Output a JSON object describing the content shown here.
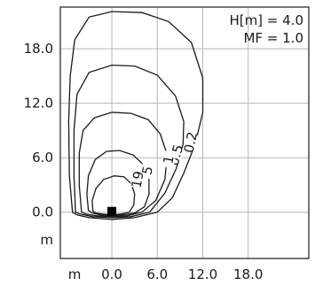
{
  "chart_data": {
    "type": "isoline",
    "annotations": [
      "H[m] = 4.0",
      "MF = 1.0"
    ],
    "x_ticks": [
      "m",
      "0.0",
      "6.0",
      "12.0",
      "18.0"
    ],
    "x_tick_values": [
      null,
      0,
      6,
      12,
      18
    ],
    "y_ticks": [
      "m",
      "0.0",
      "6.0",
      "12.0",
      "18.0"
    ],
    "y_tick_values": [
      null,
      0,
      6,
      12,
      18
    ],
    "xlim": [
      -6.8,
      26.0
    ],
    "ylim": [
      -5.1,
      22.6
    ],
    "grid": true,
    "luminaire": {
      "x": 0,
      "y": 0
    },
    "contours": [
      {
        "label": "0.2",
        "label_at": [
          10.4,
          7.7
        ],
        "label_rotation": -78,
        "points": [
          [
            -5.2,
            0.0
          ],
          [
            -5.6,
            4.0
          ],
          [
            -5.7,
            10.0
          ],
          [
            -5.5,
            15.0
          ],
          [
            -4.9,
            19.0
          ],
          [
            -3.0,
            21.5
          ],
          [
            0.0,
            22.1
          ],
          [
            4.0,
            22.0
          ],
          [
            7.5,
            21.0
          ],
          [
            10.5,
            18.7
          ],
          [
            12.0,
            14.8
          ],
          [
            12.0,
            11.0
          ],
          [
            11.0,
            7.5
          ],
          [
            9.5,
            4.3
          ],
          [
            8.0,
            1.6
          ],
          [
            6.0,
            0.0
          ],
          [
            3.0,
            -0.6
          ],
          [
            0.0,
            -0.8
          ],
          [
            -3.0,
            -0.6
          ],
          [
            -4.6,
            -0.3
          ],
          [
            -5.2,
            0.0
          ]
        ]
      },
      {
        "label": "0.5",
        "label_at": [
          8.5,
          6.3
        ],
        "label_rotation": -75,
        "points": [
          [
            -4.8,
            0.0
          ],
          [
            -5.0,
            4.0
          ],
          [
            -5.0,
            9.0
          ],
          [
            -4.6,
            13.0
          ],
          [
            -3.0,
            15.4
          ],
          [
            0.0,
            16.2
          ],
          [
            3.0,
            16.1
          ],
          [
            6.0,
            15.1
          ],
          [
            8.4,
            12.8
          ],
          [
            9.5,
            10.0
          ],
          [
            9.4,
            7.5
          ],
          [
            8.5,
            4.8
          ],
          [
            7.0,
            2.1
          ],
          [
            5.0,
            0.0
          ],
          [
            2.5,
            -0.5
          ],
          [
            0.0,
            -0.6
          ],
          [
            -2.5,
            -0.5
          ],
          [
            -4.2,
            -0.2
          ],
          [
            -4.8,
            0.0
          ]
        ]
      },
      {
        "label": "1",
        "label_at": [
          7.5,
          5.8
        ],
        "label_rotation": -80,
        "points": [
          [
            -4.0,
            0.0
          ],
          [
            -4.3,
            3.0
          ],
          [
            -4.3,
            6.5
          ],
          [
            -3.8,
            9.0
          ],
          [
            -2.3,
            10.4
          ],
          [
            0.0,
            11.0
          ],
          [
            2.5,
            10.9
          ],
          [
            4.8,
            10.2
          ],
          [
            6.4,
            8.6
          ],
          [
            7.3,
            6.3
          ],
          [
            7.0,
            3.6
          ],
          [
            5.8,
            1.3
          ],
          [
            4.0,
            0.0
          ],
          [
            2.0,
            -0.4
          ],
          [
            0.0,
            -0.5
          ],
          [
            -2.0,
            -0.4
          ],
          [
            -3.4,
            -0.2
          ],
          [
            -4.0,
            0.0
          ]
        ]
      },
      {
        "label": "5",
        "label_at": [
          4.7,
          4.6
        ],
        "label_rotation": -78,
        "points": [
          [
            -3.1,
            0.2
          ],
          [
            -3.3,
            2.0
          ],
          [
            -3.1,
            4.0
          ],
          [
            -2.2,
            5.8
          ],
          [
            -0.7,
            6.7
          ],
          [
            1.0,
            6.8
          ],
          [
            2.8,
            6.3
          ],
          [
            4.1,
            5.3
          ],
          [
            4.9,
            3.7
          ],
          [
            4.9,
            2.0
          ],
          [
            4.3,
            0.6
          ],
          [
            3.0,
            -0.1
          ],
          [
            1.5,
            -0.3
          ],
          [
            0.0,
            -0.4
          ],
          [
            -1.5,
            -0.3
          ],
          [
            -2.6,
            -0.1
          ],
          [
            -3.1,
            0.2
          ]
        ]
      },
      {
        "label": "19",
        "label_at": [
          3.4,
          3.6
        ],
        "label_rotation": -80,
        "points": [
          [
            -2.5,
            0.1
          ],
          [
            -2.6,
            1.3
          ],
          [
            -2.1,
            2.6
          ],
          [
            -1.1,
            3.6
          ],
          [
            0.3,
            4.0
          ],
          [
            1.6,
            3.9
          ],
          [
            2.6,
            3.1
          ],
          [
            3.0,
            2.0
          ],
          [
            2.9,
            0.8
          ],
          [
            2.3,
            0.0
          ],
          [
            1.2,
            -0.2
          ],
          [
            0.0,
            -0.3
          ],
          [
            -1.2,
            -0.2
          ],
          [
            -2.1,
            -0.1
          ],
          [
            -2.5,
            0.1
          ]
        ]
      }
    ]
  }
}
